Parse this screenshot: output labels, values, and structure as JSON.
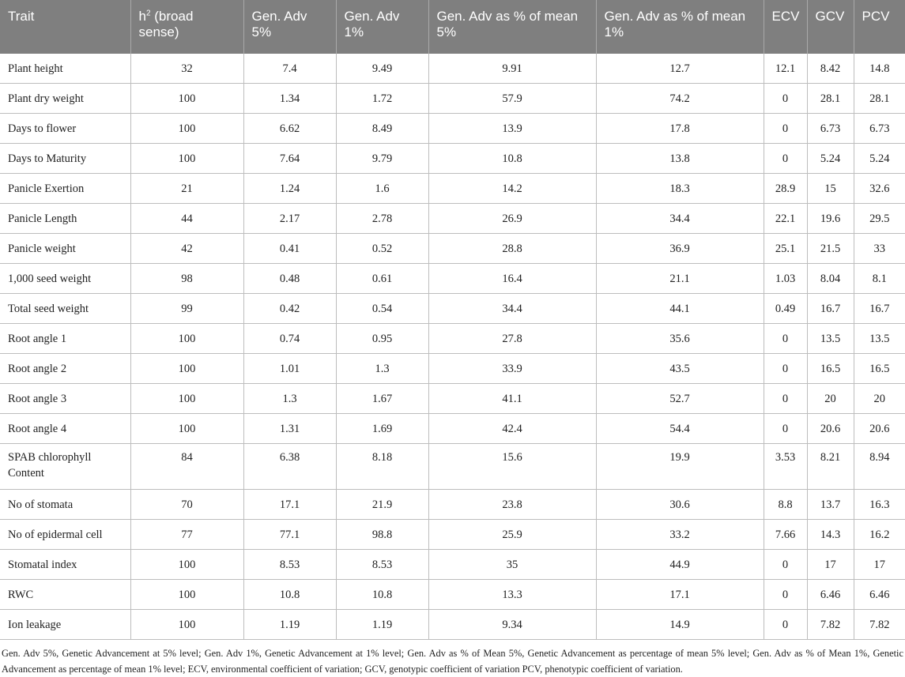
{
  "table": {
    "headers": {
      "trait": "Trait",
      "h2_base": "h",
      "h2_sup": "2",
      "h2_rest": " (broad sense)",
      "gen_adv_5": "Gen. Adv 5%",
      "gen_adv_1": "Gen. Adv 1%",
      "gen_adv_pct_5": "Gen. Adv as % of mean 5%",
      "gen_adv_pct_1": "Gen. Adv as % of mean 1%",
      "ecv": "ECV",
      "gcv": "GCV",
      "pcv": "PCV"
    },
    "rows": [
      [
        "Plant height",
        "32",
        "7.4",
        "9.49",
        "9.91",
        "12.7",
        "12.1",
        "8.42",
        "14.8"
      ],
      [
        "Plant dry weight",
        "100",
        "1.34",
        "1.72",
        "57.9",
        "74.2",
        "0",
        "28.1",
        "28.1"
      ],
      [
        "Days to flower",
        "100",
        "6.62",
        "8.49",
        "13.9",
        "17.8",
        "0",
        "6.73",
        "6.73"
      ],
      [
        "Days to Maturity",
        "100",
        "7.64",
        "9.79",
        "10.8",
        "13.8",
        "0",
        "5.24",
        "5.24"
      ],
      [
        "Panicle Exertion",
        "21",
        "1.24",
        "1.6",
        "14.2",
        "18.3",
        "28.9",
        "15",
        "32.6"
      ],
      [
        "Panicle Length",
        "44",
        "2.17",
        "2.78",
        "26.9",
        "34.4",
        "22.1",
        "19.6",
        "29.5"
      ],
      [
        "Panicle weight",
        "42",
        "0.41",
        "0.52",
        "28.8",
        "36.9",
        "25.1",
        "21.5",
        "33"
      ],
      [
        "1,000 seed weight",
        "98",
        "0.48",
        "0.61",
        "16.4",
        "21.1",
        "1.03",
        "8.04",
        "8.1"
      ],
      [
        "Total seed weight",
        "99",
        "0.42",
        "0.54",
        "34.4",
        "44.1",
        "0.49",
        "16.7",
        "16.7"
      ],
      [
        "Root angle 1",
        "100",
        "0.74",
        "0.95",
        "27.8",
        "35.6",
        "0",
        "13.5",
        "13.5"
      ],
      [
        "Root angle 2",
        "100",
        "1.01",
        "1.3",
        "33.9",
        "43.5",
        "0",
        "16.5",
        "16.5"
      ],
      [
        "Root angle 3",
        "100",
        "1.3",
        "1.67",
        "41.1",
        "52.7",
        "0",
        "20",
        "20"
      ],
      [
        "Root angle 4",
        "100",
        "1.31",
        "1.69",
        "42.4",
        "54.4",
        "0",
        "20.6",
        "20.6"
      ],
      [
        "SPAB chlorophyll Content",
        "84",
        "6.38",
        "8.18",
        "15.6",
        "19.9",
        "3.53",
        "8.21",
        "8.94"
      ],
      [
        "No of stomata",
        "70",
        "17.1",
        "21.9",
        "23.8",
        "30.6",
        "8.8",
        "13.7",
        "16.3"
      ],
      [
        "No of epidermal cell",
        "77",
        "77.1",
        "98.8",
        "25.9",
        "33.2",
        "7.66",
        "14.3",
        "16.2"
      ],
      [
        "Stomatal index",
        "100",
        "8.53",
        "8.53",
        "35",
        "44.9",
        "0",
        "17",
        "17"
      ],
      [
        "RWC",
        "100",
        "10.8",
        "10.8",
        "13.3",
        "17.1",
        "0",
        "6.46",
        "6.46"
      ],
      [
        "Ion leakage",
        "100",
        "1.19",
        "1.19",
        "9.34",
        "14.9",
        "0",
        "7.82",
        "7.82"
      ]
    ]
  },
  "footnote": "Gen. Adv 5%, Genetic Advancement at 5% level; Gen. Adv 1%, Genetic Advancement at 1% level; Gen. Adv as % of Mean 5%, Genetic Advancement as percentage of mean 5% level; Gen. Adv as % of Mean 1%, Genetic Advancement as percentage of mean 1% level; ECV, environmental coefficient of variation; GCV, genotypic coefficient of variation PCV, phenotypic coefficient of variation."
}
